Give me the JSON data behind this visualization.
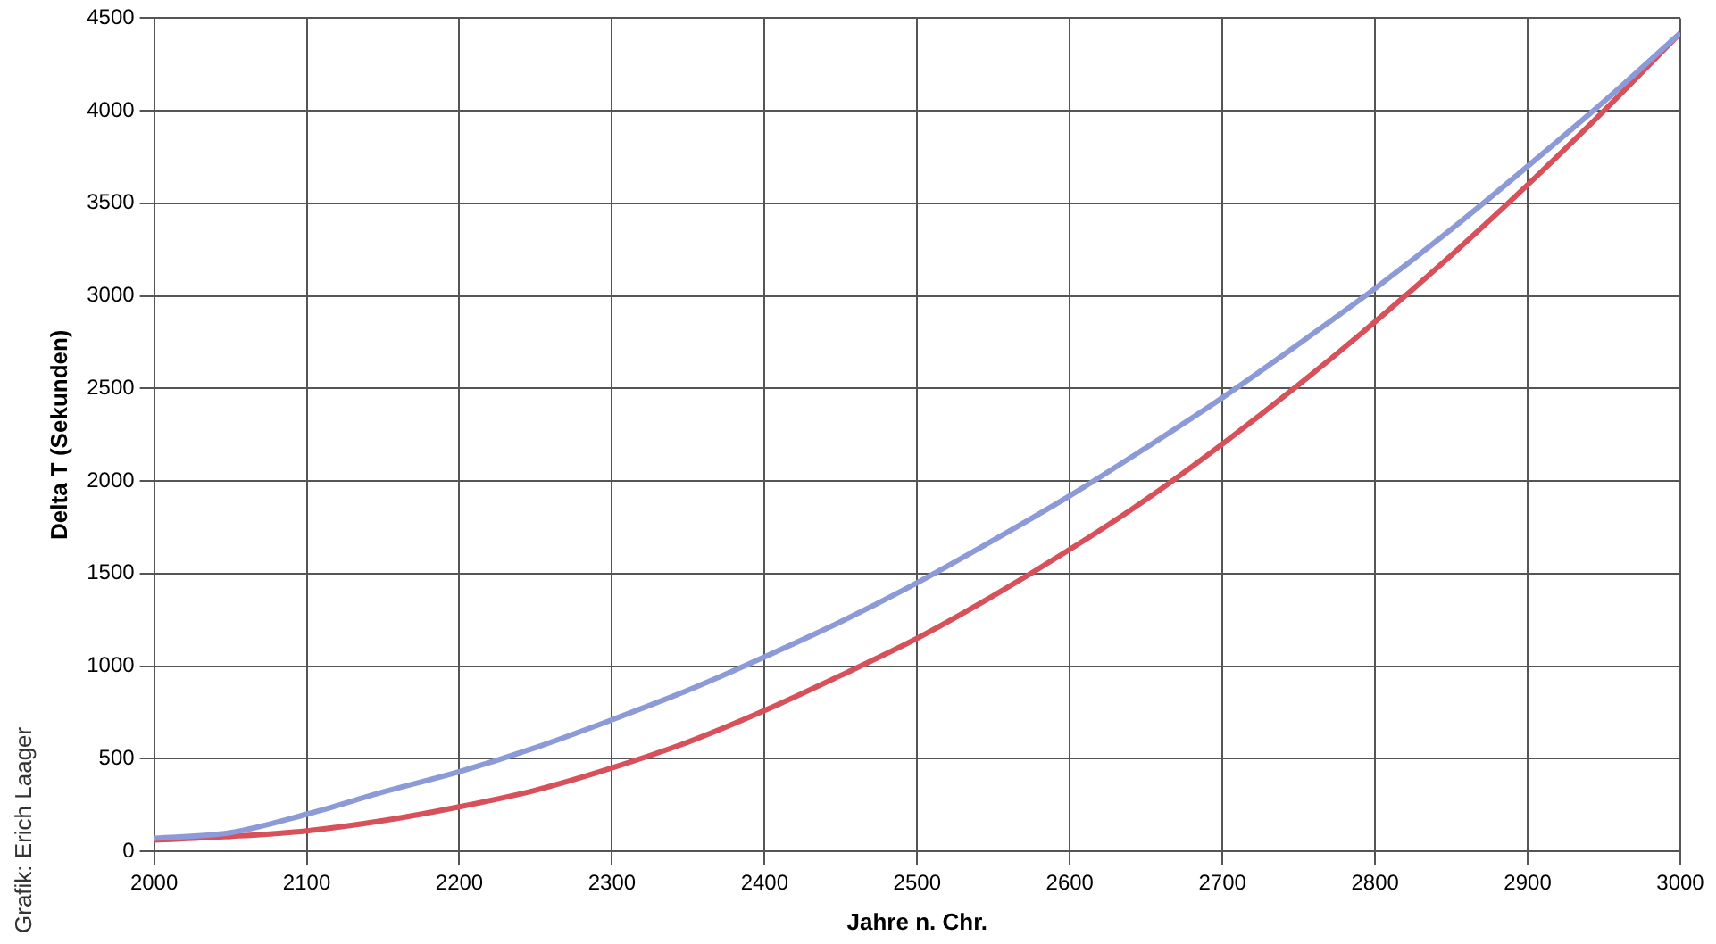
{
  "chart_data": {
    "type": "line",
    "xlabel": "Jahre n. Chr.",
    "ylabel": "Delta T (Sekunden)",
    "annotations": [
      "Grafik: Erich Laager"
    ],
    "x": [
      2000,
      2050,
      2100,
      2150,
      2200,
      2250,
      2300,
      2350,
      2400,
      2450,
      2500,
      2550,
      2600,
      2650,
      2700,
      2750,
      2800,
      2850,
      2900,
      2950,
      3000
    ],
    "series": [
      {
        "color": "#8c9ad8",
        "values": [
          70,
          100,
          200,
          320,
          430,
          560,
          710,
          870,
          1050,
          1240,
          1450,
          1680,
          1920,
          2180,
          2450,
          2740,
          3040,
          3360,
          3700,
          4050,
          4420
        ]
      },
      {
        "color": "#d8505a",
        "values": [
          60,
          80,
          110,
          165,
          240,
          330,
          450,
          590,
          760,
          950,
          1150,
          1380,
          1630,
          1900,
          2200,
          2520,
          2860,
          3220,
          3600,
          4000,
          4420
        ]
      }
    ],
    "xlim": [
      2000,
      3000
    ],
    "xticks": [
      2000,
      2100,
      2200,
      2300,
      2400,
      2500,
      2600,
      2700,
      2800,
      2900,
      3000
    ],
    "ylim": [
      0,
      4500
    ],
    "yticks": [
      0,
      500,
      1000,
      1500,
      2000,
      2500,
      3000,
      3500,
      4000,
      4500
    ],
    "grid": true,
    "legend": false,
    "marker": "none",
    "line_style": "solid"
  }
}
